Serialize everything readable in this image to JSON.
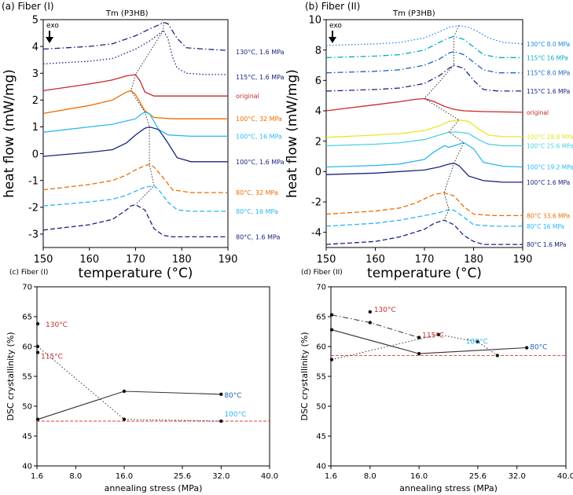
{
  "chart_data": [
    {
      "panel": "(a) Fiber (I)",
      "type": "line",
      "annotation": "Tm (P3HB)",
      "arrow_label": "exo",
      "xlabel": "temperature (°C)",
      "ylabel": "heat flow (mW/mg)",
      "xlim": [
        150,
        190
      ],
      "ylim": [
        -3.5,
        5
      ],
      "xticks": [
        150,
        160,
        170,
        180,
        190
      ],
      "yticks": [
        -3,
        -2,
        -1,
        0,
        1,
        2,
        3,
        4,
        5
      ],
      "series": [
        {
          "name": "130°C, 1.6 MPa",
          "color": "#1a237e",
          "dash": "dashdot",
          "x": [
            150,
            160,
            165,
            170,
            173,
            175,
            176,
            177,
            179,
            181,
            185,
            190
          ],
          "y": [
            3.9,
            4.0,
            4.1,
            4.4,
            4.65,
            4.8,
            4.9,
            4.85,
            4.3,
            3.95,
            3.9,
            3.85
          ]
        },
        {
          "name": "115°C, 1.6 MPa",
          "color": "#1a237e",
          "dash": "dotted",
          "x": [
            150,
            160,
            165,
            170,
            173,
            175,
            176,
            177,
            178,
            179,
            181,
            185,
            190
          ],
          "y": [
            3.35,
            3.45,
            3.55,
            3.9,
            4.2,
            4.45,
            4.6,
            4.3,
            3.6,
            3.2,
            3.0,
            2.95,
            2.95
          ]
        },
        {
          "name": "original",
          "color": "#c62828",
          "dash": "solid",
          "x": [
            150,
            160,
            165,
            168,
            170,
            171,
            172,
            174,
            178,
            182,
            190
          ],
          "y": [
            2.35,
            2.6,
            2.75,
            2.9,
            2.95,
            2.7,
            2.3,
            2.15,
            2.15,
            2.15,
            2.15
          ]
        },
        {
          "name": "100°C, 32 MPa",
          "color": "#ef6c00",
          "dash": "solid",
          "x": [
            150,
            160,
            165,
            168,
            169,
            170,
            172,
            174,
            178,
            182,
            190
          ],
          "y": [
            1.5,
            1.8,
            2.0,
            2.3,
            2.35,
            2.2,
            1.6,
            1.35,
            1.3,
            1.3,
            1.3
          ]
        },
        {
          "name": "100°C, 16 MPa",
          "color": "#29b6f6",
          "dash": "solid",
          "x": [
            150,
            160,
            165,
            170,
            171,
            172,
            173,
            175,
            177,
            182,
            190
          ],
          "y": [
            0.8,
            1.0,
            1.1,
            1.3,
            1.45,
            1.55,
            1.5,
            0.9,
            0.7,
            0.65,
            0.65
          ]
        },
        {
          "name": "100°C, 1.6 MPa",
          "color": "#1a237e",
          "dash": "solid",
          "x": [
            150,
            160,
            165,
            168,
            170,
            172,
            173,
            175,
            177,
            179,
            182,
            186,
            190
          ],
          "y": [
            -0.1,
            0.05,
            0.15,
            0.4,
            0.7,
            0.95,
            1.0,
            0.9,
            0.4,
            -0.15,
            -0.3,
            -0.3,
            -0.3
          ]
        },
        {
          "name": "80°C, 32 MPa",
          "color": "#ef6c00",
          "dash": "dashed",
          "x": [
            150,
            160,
            165,
            168,
            170,
            172,
            173,
            174,
            176,
            178,
            182,
            190
          ],
          "y": [
            -1.35,
            -1.15,
            -1.0,
            -0.8,
            -0.6,
            -0.45,
            -0.4,
            -0.5,
            -0.9,
            -1.35,
            -1.45,
            -1.45
          ]
        },
        {
          "name": "80°C, 16 MPa",
          "color": "#29b6f6",
          "dash": "dashed",
          "x": [
            150,
            160,
            165,
            168,
            170,
            172,
            174,
            175,
            177,
            179,
            182,
            190
          ],
          "y": [
            -1.95,
            -1.8,
            -1.7,
            -1.55,
            -1.4,
            -1.25,
            -1.2,
            -1.35,
            -1.8,
            -2.1,
            -2.15,
            -2.15
          ]
        },
        {
          "name": "80°C, 1.6 MPa",
          "color": "#1a237e",
          "dash": "dashed",
          "x": [
            150,
            160,
            165,
            168,
            169,
            170,
            172,
            174,
            176,
            178,
            182,
            190
          ],
          "y": [
            -2.85,
            -2.65,
            -2.45,
            -2.1,
            -1.95,
            -1.9,
            -2.1,
            -2.8,
            -3.05,
            -3.1,
            -3.1,
            -3.1
          ]
        }
      ]
    },
    {
      "panel": "(b) Fiber (II)",
      "type": "line",
      "annotation": "Tm (P3HB)",
      "arrow_label": "exo",
      "xlabel": "temperature (°C)",
      "ylabel": "heat flow (mW/mg)",
      "xlim": [
        150,
        190
      ],
      "ylim": [
        -5,
        10
      ],
      "xticks": [
        150,
        160,
        170,
        180,
        190
      ],
      "yticks": [
        -4,
        -2,
        0,
        2,
        4,
        6,
        8,
        10
      ],
      "series": [
        {
          "name": "130°C 8.0 MPa",
          "color": "#1e88e5",
          "dash": "dotted",
          "x": [
            150,
            160,
            165,
            170,
            173,
            175,
            177,
            179,
            181,
            183,
            186,
            190
          ],
          "y": [
            8.3,
            8.4,
            8.5,
            8.8,
            9.2,
            9.5,
            9.6,
            9.5,
            9.2,
            8.8,
            8.5,
            8.4
          ]
        },
        {
          "name": "115°C 16 MPa",
          "color": "#00acc1",
          "dash": "dashdot",
          "x": [
            150,
            160,
            165,
            170,
            173,
            175,
            176,
            178,
            180,
            182,
            185,
            190
          ],
          "y": [
            7.5,
            7.6,
            7.7,
            8.0,
            8.5,
            8.8,
            8.9,
            8.7,
            8.2,
            7.7,
            7.5,
            7.5
          ]
        },
        {
          "name": "115°C 8.0 MPa",
          "color": "#1565c0",
          "dash": "dashdot",
          "x": [
            150,
            160,
            165,
            170,
            173,
            175,
            176,
            178,
            180,
            182,
            185,
            190
          ],
          "y": [
            6.5,
            6.6,
            6.7,
            7.0,
            7.4,
            7.8,
            7.9,
            7.7,
            7.2,
            6.7,
            6.5,
            6.5
          ]
        },
        {
          "name": "115°C 1.6 MPa",
          "color": "#1a237e",
          "dash": "dashdot",
          "x": [
            150,
            160,
            165,
            170,
            173,
            175,
            176,
            178,
            180,
            182,
            185,
            190
          ],
          "y": [
            5.3,
            5.4,
            5.5,
            5.8,
            6.3,
            6.8,
            7.0,
            6.8,
            6.0,
            5.4,
            5.3,
            5.3
          ]
        },
        {
          "name": "original",
          "color": "#c62828",
          "dash": "solid",
          "x": [
            150,
            155,
            160,
            165,
            168,
            170,
            172,
            174,
            176,
            178,
            182,
            190
          ],
          "y": [
            4.0,
            4.2,
            4.4,
            4.6,
            4.75,
            4.8,
            4.6,
            4.3,
            4.1,
            4.0,
            3.95,
            3.9
          ]
        },
        {
          "name": "100°C 28.8 MPa",
          "color": "#e6e629",
          "dash": "solid",
          "x": [
            150,
            160,
            165,
            170,
            173,
            175,
            177,
            179,
            181,
            183,
            186,
            190
          ],
          "y": [
            2.25,
            2.4,
            2.5,
            2.7,
            3.0,
            3.3,
            3.4,
            3.3,
            2.8,
            2.4,
            2.3,
            2.3
          ]
        },
        {
          "name": "100°C 25.6 MPa",
          "color": "#4dd0e1",
          "dash": "solid",
          "x": [
            150,
            160,
            165,
            170,
            173,
            175,
            177,
            179,
            181,
            183,
            186,
            190
          ],
          "y": [
            1.7,
            1.8,
            1.9,
            2.1,
            2.4,
            2.6,
            2.6,
            2.5,
            2.1,
            1.8,
            1.7,
            1.7
          ]
        },
        {
          "name": "100°C 19.2 MPa",
          "color": "#29b6f6",
          "dash": "solid",
          "x": [
            150,
            160,
            165,
            170,
            172,
            174,
            175,
            176,
            178,
            180,
            182,
            186,
            190
          ],
          "y": [
            0.3,
            0.4,
            0.5,
            0.8,
            1.3,
            1.7,
            1.6,
            1.7,
            1.9,
            1.5,
            0.6,
            0.35,
            0.3
          ]
        },
        {
          "name": "100°C 1.6 MPa",
          "color": "#1a237e",
          "dash": "solid",
          "x": [
            150,
            160,
            165,
            170,
            173,
            175,
            176,
            177,
            179,
            182,
            186,
            190
          ],
          "y": [
            -0.2,
            -0.1,
            0.0,
            0.1,
            0.3,
            0.5,
            0.55,
            0.4,
            -0.3,
            -0.6,
            -0.7,
            -0.7
          ]
        },
        {
          "name": "80°C 33.6 MPa",
          "color": "#ef6c00",
          "dash": "dashed",
          "x": [
            150,
            160,
            165,
            168,
            170,
            172,
            174,
            176,
            178,
            180,
            184,
            190
          ],
          "y": [
            -2.8,
            -2.6,
            -2.4,
            -2.1,
            -1.8,
            -1.5,
            -1.4,
            -1.6,
            -2.3,
            -2.8,
            -2.9,
            -2.9
          ]
        },
        {
          "name": "80°C 16 MPa",
          "color": "#29b6f6",
          "dash": "dashed",
          "x": [
            150,
            160,
            165,
            170,
            173,
            175,
            176,
            178,
            180,
            184,
            190
          ],
          "y": [
            -3.6,
            -3.4,
            -3.2,
            -2.9,
            -2.7,
            -2.5,
            -2.55,
            -3.0,
            -3.5,
            -3.6,
            -3.6
          ]
        },
        {
          "name": "80°C 1.6 MPa",
          "color": "#1a237e",
          "dash": "dashed",
          "x": [
            150,
            160,
            165,
            170,
            172,
            174,
            176,
            178,
            180,
            182,
            186,
            190
          ],
          "y": [
            -4.8,
            -4.6,
            -4.3,
            -3.8,
            -3.4,
            -3.2,
            -3.5,
            -4.2,
            -4.6,
            -4.8,
            -4.8,
            -4.8
          ]
        }
      ]
    },
    {
      "panel": "(c) Fiber (I)",
      "type": "line",
      "xlabel": "annealing stress (MPa)",
      "ylabel": "DSC crystallinity (%)",
      "xlim": [
        1.6,
        40.0
      ],
      "ylim": [
        40,
        70
      ],
      "xticks": [
        1.6,
        8.0,
        16.0,
        25.6,
        32.0,
        40.0
      ],
      "xtick_labels": [
        "1.6",
        "8.0",
        "16.0",
        "25.6",
        "32.0",
        "40.0"
      ],
      "yticks": [
        40,
        45,
        50,
        55,
        60,
        65,
        70
      ],
      "reference_line": 47.5,
      "series": [
        {
          "name": "80°C",
          "color": "#1565c0",
          "dash": "solid",
          "x": [
            1.6,
            16.0,
            32.0
          ],
          "y": [
            47.8,
            52.5,
            52.0
          ]
        },
        {
          "name": "100°C",
          "color": "#29b6f6",
          "dash": "dotted",
          "x": [
            1.6,
            16.0,
            32.0
          ],
          "y": [
            60.0,
            47.8,
            47.5
          ]
        },
        {
          "name": "115°C",
          "color": "#c62828",
          "dash": "none",
          "x": [
            1.6
          ],
          "y": [
            59.0
          ]
        },
        {
          "name": "130°C",
          "color": "#c62828",
          "dash": "none",
          "x": [
            1.6
          ],
          "y": [
            63.8
          ]
        }
      ]
    },
    {
      "panel": "(d) Fiber (II)",
      "type": "line",
      "xlabel": "annealing stress (MPa)",
      "ylabel": "DSC crystallinity (%)",
      "xlim": [
        1.6,
        40.0
      ],
      "ylim": [
        40,
        70
      ],
      "xticks": [
        1.6,
        8.0,
        16.0,
        25.6,
        32.0,
        40.0
      ],
      "xtick_labels": [
        "1.6",
        "8.0",
        "16.0",
        "25.6",
        "32.0",
        "40.0"
      ],
      "yticks": [
        40,
        45,
        50,
        55,
        60,
        65,
        70
      ],
      "reference_line": 58.5,
      "series": [
        {
          "name": "80°C",
          "color": "#1565c0",
          "dash": "solid",
          "x": [
            1.6,
            16.0,
            33.6
          ],
          "y": [
            62.8,
            58.8,
            59.8
          ]
        },
        {
          "name": "100°C",
          "color": "#29b6f6",
          "dash": "dotted",
          "x": [
            1.6,
            19.2,
            25.6,
            28.8
          ],
          "y": [
            57.8,
            62.0,
            60.8,
            58.5
          ]
        },
        {
          "name": "115°C",
          "color": "#c62828",
          "dash": "dashdot",
          "x": [
            1.6,
            8.0,
            16.0
          ],
          "y": [
            65.3,
            64.0,
            61.5
          ]
        },
        {
          "name": "130°C",
          "color": "#c62828",
          "dash": "none",
          "x": [
            8.0
          ],
          "y": [
            65.8
          ]
        }
      ]
    }
  ]
}
